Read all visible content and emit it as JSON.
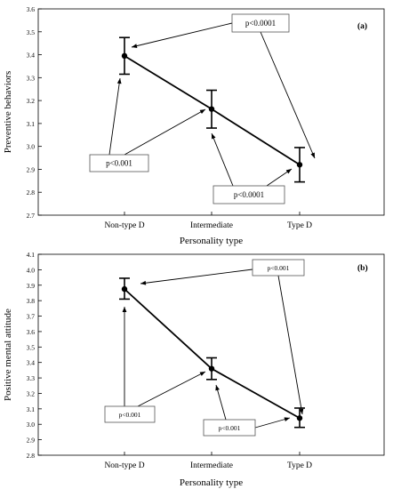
{
  "chart_data": [
    {
      "type": "line",
      "panel_label": "(a)",
      "xlabel": "Personality type",
      "ylabel": "Preventive behaviors",
      "categories": [
        "Non-type D",
        "Intermediate",
        "Type D"
      ],
      "ylim": [
        2.7,
        3.6
      ],
      "yticks": [
        "2.7",
        "2.8",
        "2.9",
        "3.0",
        "3.1",
        "3.2",
        "3.3",
        "3.4",
        "3.5",
        "3.6"
      ],
      "series": [
        {
          "values": [
            3.395,
            3.163,
            2.92
          ],
          "lower": [
            3.315,
            3.08,
            2.845
          ],
          "upper": [
            3.475,
            3.245,
            2.995
          ]
        }
      ],
      "annotations": [
        {
          "text": "p<0.0001",
          "comparison": "Non-type D vs Type D"
        },
        {
          "text": "p<0.001",
          "comparison": "Non-type D vs Intermediate"
        },
        {
          "text": "p<0.0001",
          "comparison": "Intermediate vs Type D"
        }
      ],
      "color": "#000000",
      "grid": false
    },
    {
      "type": "line",
      "panel_label": "(b)",
      "xlabel": "Personality type",
      "ylabel": "Positive mental attitude",
      "categories": [
        "Non-type D",
        "Intermediate",
        "Type D"
      ],
      "ylim": [
        2.8,
        4.1
      ],
      "yticks": [
        "2.8",
        "2.9",
        "3.0",
        "3.1",
        "3.2",
        "3.3",
        "3.4",
        "3.5",
        "3.6",
        "3.7",
        "3.8",
        "3.9",
        "4.0",
        "4.1"
      ],
      "series": [
        {
          "values": [
            3.875,
            3.36,
            3.04
          ],
          "lower": [
            3.81,
            3.29,
            2.98
          ],
          "upper": [
            3.945,
            3.43,
            3.105
          ]
        }
      ],
      "annotations": [
        {
          "text": "p<0.001",
          "comparison": "Non-type D vs Type D"
        },
        {
          "text": "p<0.001",
          "comparison": "Non-type D vs Intermediate"
        },
        {
          "text": "p<0.001",
          "comparison": "Intermediate vs Type D"
        }
      ],
      "color": "#000000",
      "grid": false
    }
  ]
}
